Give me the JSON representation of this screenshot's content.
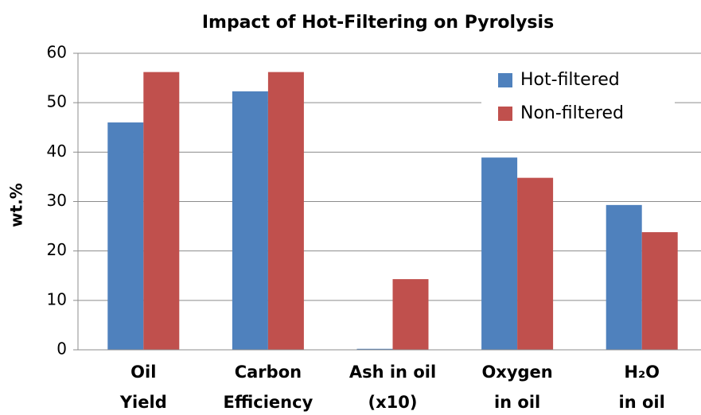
{
  "chart_data": {
    "type": "bar",
    "title": "Impact of Hot-Filtering on Pyrolysis",
    "y_label": "wt.%",
    "categories": [
      [
        "Oil",
        "Yield"
      ],
      [
        "Carbon",
        "Efficiency"
      ],
      [
        "Ash in oil",
        "(x10)"
      ],
      [
        "Oxygen",
        "in oil"
      ],
      [
        "H₂O",
        "in oil"
      ]
    ],
    "series": [
      {
        "name": "Hot-filtered",
        "color": "#4f81bd",
        "values": [
          46,
          52.3,
          0.2,
          38.9,
          29.3
        ]
      },
      {
        "name": "Non-filtered",
        "color": "#c0504d",
        "values": [
          56.2,
          56.2,
          14.3,
          34.8,
          23.8
        ]
      }
    ],
    "ylim": [
      0,
      60
    ],
    "yticks": [
      0,
      10,
      20,
      30,
      40,
      50,
      60
    ],
    "grid": true,
    "legend": "upper right"
  }
}
